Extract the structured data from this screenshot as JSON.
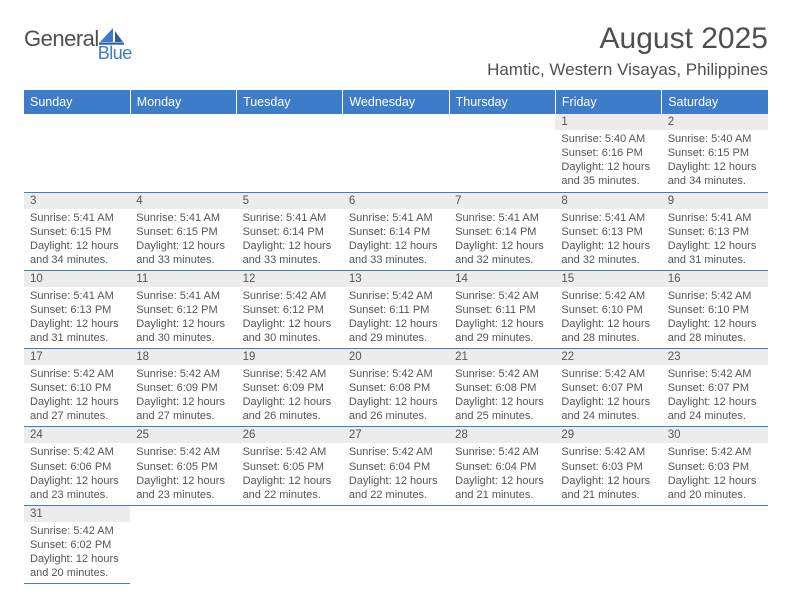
{
  "logo": {
    "part1": "General",
    "part2": "Blue"
  },
  "title": "August 2025",
  "location": "Hamtic, Western Visayas, Philippines",
  "colors": {
    "header_bg": "#3d7cc9",
    "daynum_bg": "#ececec",
    "rule": "#3d7cc9",
    "text": "#505050",
    "logo_blue": "#3d7cc9"
  },
  "weekdays": [
    "Sunday",
    "Monday",
    "Tuesday",
    "Wednesday",
    "Thursday",
    "Friday",
    "Saturday"
  ],
  "weeks": [
    [
      {
        "day": "",
        "lines": []
      },
      {
        "day": "",
        "lines": []
      },
      {
        "day": "",
        "lines": []
      },
      {
        "day": "",
        "lines": []
      },
      {
        "day": "",
        "lines": []
      },
      {
        "day": "1",
        "lines": [
          "Sunrise: 5:40 AM",
          "Sunset: 6:16 PM",
          "Daylight: 12 hours and 35 minutes."
        ]
      },
      {
        "day": "2",
        "lines": [
          "Sunrise: 5:40 AM",
          "Sunset: 6:15 PM",
          "Daylight: 12 hours and 34 minutes."
        ]
      }
    ],
    [
      {
        "day": "3",
        "lines": [
          "Sunrise: 5:41 AM",
          "Sunset: 6:15 PM",
          "Daylight: 12 hours and 34 minutes."
        ]
      },
      {
        "day": "4",
        "lines": [
          "Sunrise: 5:41 AM",
          "Sunset: 6:15 PM",
          "Daylight: 12 hours and 33 minutes."
        ]
      },
      {
        "day": "5",
        "lines": [
          "Sunrise: 5:41 AM",
          "Sunset: 6:14 PM",
          "Daylight: 12 hours and 33 minutes."
        ]
      },
      {
        "day": "6",
        "lines": [
          "Sunrise: 5:41 AM",
          "Sunset: 6:14 PM",
          "Daylight: 12 hours and 33 minutes."
        ]
      },
      {
        "day": "7",
        "lines": [
          "Sunrise: 5:41 AM",
          "Sunset: 6:14 PM",
          "Daylight: 12 hours and 32 minutes."
        ]
      },
      {
        "day": "8",
        "lines": [
          "Sunrise: 5:41 AM",
          "Sunset: 6:13 PM",
          "Daylight: 12 hours and 32 minutes."
        ]
      },
      {
        "day": "9",
        "lines": [
          "Sunrise: 5:41 AM",
          "Sunset: 6:13 PM",
          "Daylight: 12 hours and 31 minutes."
        ]
      }
    ],
    [
      {
        "day": "10",
        "lines": [
          "Sunrise: 5:41 AM",
          "Sunset: 6:13 PM",
          "Daylight: 12 hours and 31 minutes."
        ]
      },
      {
        "day": "11",
        "lines": [
          "Sunrise: 5:41 AM",
          "Sunset: 6:12 PM",
          "Daylight: 12 hours and 30 minutes."
        ]
      },
      {
        "day": "12",
        "lines": [
          "Sunrise: 5:42 AM",
          "Sunset: 6:12 PM",
          "Daylight: 12 hours and 30 minutes."
        ]
      },
      {
        "day": "13",
        "lines": [
          "Sunrise: 5:42 AM",
          "Sunset: 6:11 PM",
          "Daylight: 12 hours and 29 minutes."
        ]
      },
      {
        "day": "14",
        "lines": [
          "Sunrise: 5:42 AM",
          "Sunset: 6:11 PM",
          "Daylight: 12 hours and 29 minutes."
        ]
      },
      {
        "day": "15",
        "lines": [
          "Sunrise: 5:42 AM",
          "Sunset: 6:10 PM",
          "Daylight: 12 hours and 28 minutes."
        ]
      },
      {
        "day": "16",
        "lines": [
          "Sunrise: 5:42 AM",
          "Sunset: 6:10 PM",
          "Daylight: 12 hours and 28 minutes."
        ]
      }
    ],
    [
      {
        "day": "17",
        "lines": [
          "Sunrise: 5:42 AM",
          "Sunset: 6:10 PM",
          "Daylight: 12 hours and 27 minutes."
        ]
      },
      {
        "day": "18",
        "lines": [
          "Sunrise: 5:42 AM",
          "Sunset: 6:09 PM",
          "Daylight: 12 hours and 27 minutes."
        ]
      },
      {
        "day": "19",
        "lines": [
          "Sunrise: 5:42 AM",
          "Sunset: 6:09 PM",
          "Daylight: 12 hours and 26 minutes."
        ]
      },
      {
        "day": "20",
        "lines": [
          "Sunrise: 5:42 AM",
          "Sunset: 6:08 PM",
          "Daylight: 12 hours and 26 minutes."
        ]
      },
      {
        "day": "21",
        "lines": [
          "Sunrise: 5:42 AM",
          "Sunset: 6:08 PM",
          "Daylight: 12 hours and 25 minutes."
        ]
      },
      {
        "day": "22",
        "lines": [
          "Sunrise: 5:42 AM",
          "Sunset: 6:07 PM",
          "Daylight: 12 hours and 24 minutes."
        ]
      },
      {
        "day": "23",
        "lines": [
          "Sunrise: 5:42 AM",
          "Sunset: 6:07 PM",
          "Daylight: 12 hours and 24 minutes."
        ]
      }
    ],
    [
      {
        "day": "24",
        "lines": [
          "Sunrise: 5:42 AM",
          "Sunset: 6:06 PM",
          "Daylight: 12 hours and 23 minutes."
        ]
      },
      {
        "day": "25",
        "lines": [
          "Sunrise: 5:42 AM",
          "Sunset: 6:05 PM",
          "Daylight: 12 hours and 23 minutes."
        ]
      },
      {
        "day": "26",
        "lines": [
          "Sunrise: 5:42 AM",
          "Sunset: 6:05 PM",
          "Daylight: 12 hours and 22 minutes."
        ]
      },
      {
        "day": "27",
        "lines": [
          "Sunrise: 5:42 AM",
          "Sunset: 6:04 PM",
          "Daylight: 12 hours and 22 minutes."
        ]
      },
      {
        "day": "28",
        "lines": [
          "Sunrise: 5:42 AM",
          "Sunset: 6:04 PM",
          "Daylight: 12 hours and 21 minutes."
        ]
      },
      {
        "day": "29",
        "lines": [
          "Sunrise: 5:42 AM",
          "Sunset: 6:03 PM",
          "Daylight: 12 hours and 21 minutes."
        ]
      },
      {
        "day": "30",
        "lines": [
          "Sunrise: 5:42 AM",
          "Sunset: 6:03 PM",
          "Daylight: 12 hours and 20 minutes."
        ]
      }
    ],
    [
      {
        "day": "31",
        "lines": [
          "Sunrise: 5:42 AM",
          "Sunset: 6:02 PM",
          "Daylight: 12 hours and 20 minutes."
        ]
      },
      {
        "day": "",
        "lines": []
      },
      {
        "day": "",
        "lines": []
      },
      {
        "day": "",
        "lines": []
      },
      {
        "day": "",
        "lines": []
      },
      {
        "day": "",
        "lines": []
      },
      {
        "day": "",
        "lines": []
      }
    ]
  ]
}
